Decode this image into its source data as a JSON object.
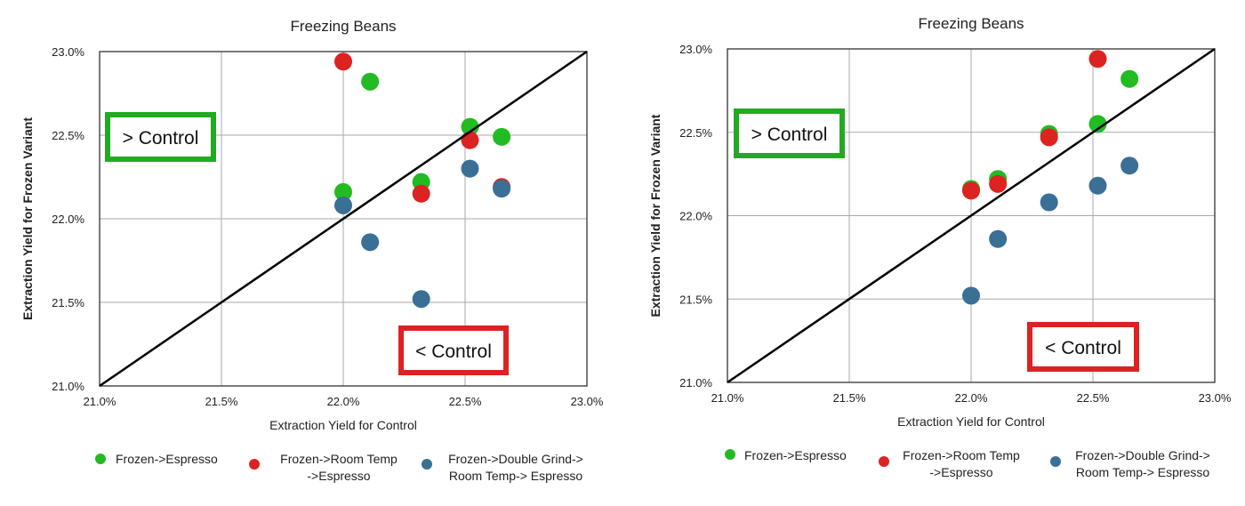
{
  "chart_data": [
    {
      "type": "scatter",
      "title": "Freezing Beans",
      "xlabel": "Extraction Yield for Control",
      "ylabel": "Extraction Yield for Frozen Variant",
      "xlim": [
        21.0,
        23.0
      ],
      "ylim": [
        21.0,
        23.0
      ],
      "x_ticks": [
        "21.0%",
        "21.5%",
        "22.0%",
        "22.5%",
        "23.0%"
      ],
      "y_ticks": [
        "21.0%",
        "21.5%",
        "22.0%",
        "22.5%",
        "23.0%"
      ],
      "grid": true,
      "reference_line": "y = x",
      "annotations": [
        {
          "text": "> Control",
          "color": "#22aa22"
        },
        {
          "text": "< Control",
          "color": "#dd2222"
        }
      ],
      "legend_position": "bottom",
      "series": [
        {
          "name": [
            "Frozen->Espresso"
          ],
          "color": "#22bb22",
          "points": [
            [
              22.0,
              22.16
            ],
            [
              22.11,
              22.82
            ],
            [
              22.32,
              22.22
            ],
            [
              22.52,
              22.55
            ],
            [
              22.65,
              22.49
            ]
          ]
        },
        {
          "name": [
            "Frozen->Room Temp",
            "->Espresso"
          ],
          "color": "#dd2222",
          "points": [
            [
              22.0,
              22.94
            ],
            [
              22.32,
              22.15
            ],
            [
              22.52,
              22.47
            ],
            [
              22.65,
              22.19
            ]
          ]
        },
        {
          "name": [
            "Frozen->Double Grind->",
            "Room Temp-> Espresso"
          ],
          "color": "#3a6f96",
          "points": [
            [
              22.0,
              22.08
            ],
            [
              22.11,
              21.86
            ],
            [
              22.32,
              21.52
            ],
            [
              22.52,
              22.3
            ],
            [
              22.65,
              22.18
            ]
          ]
        }
      ]
    },
    {
      "type": "scatter",
      "title": "Freezing Beans",
      "xlabel": "Extraction Yield for Control",
      "ylabel": "Extraction Yield for Frozen Variant",
      "xlim": [
        21.0,
        23.0
      ],
      "ylim": [
        21.0,
        23.0
      ],
      "x_ticks": [
        "21.0%",
        "21.5%",
        "22.0%",
        "22.5%",
        "23.0%"
      ],
      "y_ticks": [
        "21.0%",
        "21.5%",
        "22.0%",
        "22.5%",
        "23.0%"
      ],
      "grid": true,
      "reference_line": "y = x",
      "annotations": [
        {
          "text": "> Control",
          "color": "#22aa22"
        },
        {
          "text": "< Control",
          "color": "#dd2222"
        }
      ],
      "legend_position": "bottom",
      "series": [
        {
          "name": [
            "Frozen->Espresso"
          ],
          "color": "#22bb22",
          "points": [
            [
              22.0,
              22.16
            ],
            [
              22.11,
              22.22
            ],
            [
              22.32,
              22.49
            ],
            [
              22.52,
              22.55
            ],
            [
              22.65,
              22.82
            ]
          ]
        },
        {
          "name": [
            "Frozen->Room Temp",
            "->Espresso"
          ],
          "color": "#dd2222",
          "points": [
            [
              22.0,
              22.15
            ],
            [
              22.11,
              22.19
            ],
            [
              22.32,
              22.47
            ],
            [
              22.52,
              22.94
            ]
          ]
        },
        {
          "name": [
            "Frozen->Double Grind->",
            "Room Temp-> Espresso"
          ],
          "color": "#3a6f96",
          "points": [
            [
              22.0,
              21.52
            ],
            [
              22.11,
              21.86
            ],
            [
              22.32,
              22.08
            ],
            [
              22.52,
              22.18
            ],
            [
              22.65,
              22.3
            ]
          ]
        }
      ]
    }
  ]
}
